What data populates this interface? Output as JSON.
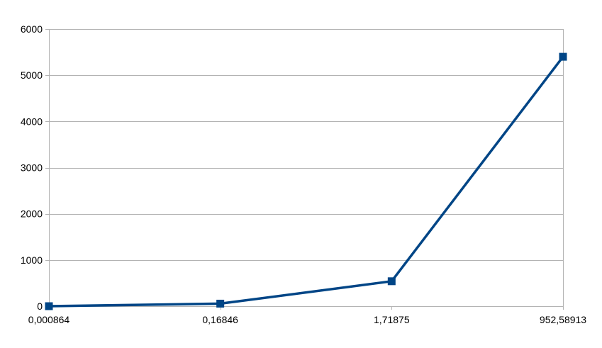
{
  "chart_data": {
    "type": "line",
    "title": "",
    "xlabel": "",
    "ylabel": "",
    "categories": [
      "0,000864",
      "0,16846",
      "1,71875",
      "952,58913"
    ],
    "series": [
      {
        "values": [
          0,
          55,
          540,
          5400
        ]
      }
    ],
    "ylim": [
      0,
      6000
    ],
    "yticks": [
      "0",
      "1000",
      "2000",
      "3000",
      "4000",
      "5000",
      "6000"
    ],
    "grid": true,
    "legend": "none",
    "marker": "square",
    "colors": {
      "series": "#004586",
      "grid": "#b3b3b3",
      "axis": "#b3b3b3",
      "text": "#000000"
    }
  }
}
